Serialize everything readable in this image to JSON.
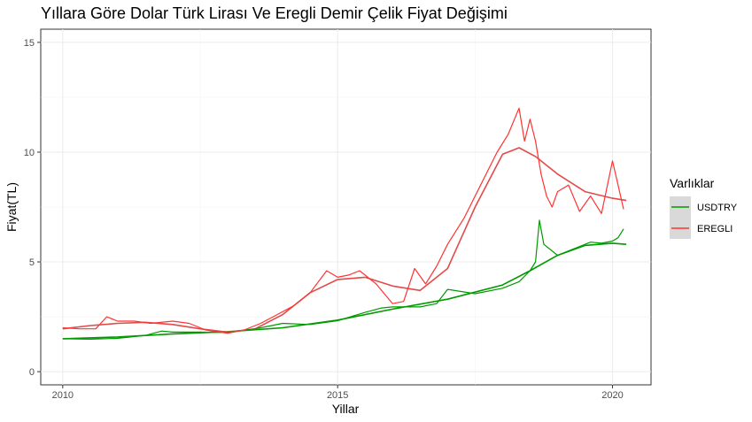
{
  "chart_data": {
    "type": "line",
    "title": "Yıllara Göre Dolar Türk Lirası Ve Eregli Demir Çelik Fiyat Değişimi",
    "xlabel": "Yillar",
    "ylabel": "Fiyat(TL)",
    "xlim": [
      2009.6,
      2020.7
    ],
    "ylim": [
      -0.6,
      15.6
    ],
    "x_ticks": [
      2010,
      2015,
      2020
    ],
    "x_tick_labels": [
      "2010",
      "2015",
      "2020"
    ],
    "y_ticks": [
      0,
      5,
      10,
      15
    ],
    "y_tick_labels": [
      "0",
      "5",
      "10",
      "15"
    ],
    "grid": true,
    "legend": {
      "title": "Varlıklar",
      "position": "right"
    },
    "series": [
      {
        "name": "USDTRY",
        "color": "#009900",
        "x": [
          2010.0,
          2010.5,
          2011.0,
          2011.5,
          2011.8,
          2012.0,
          2012.5,
          2013.0,
          2013.5,
          2013.8,
          2014.0,
          2014.5,
          2015.0,
          2015.5,
          2015.8,
          2016.0,
          2016.5,
          2016.8,
          2017.0,
          2017.5,
          2018.0,
          2018.3,
          2018.5,
          2018.6,
          2018.67,
          2018.75,
          2018.9,
          2019.0,
          2019.2,
          2019.4,
          2019.6,
          2019.8,
          2020.0,
          2020.1,
          2020.2
        ],
        "values": [
          1.5,
          1.48,
          1.52,
          1.65,
          1.85,
          1.8,
          1.8,
          1.78,
          1.95,
          2.1,
          2.2,
          2.15,
          2.32,
          2.7,
          2.9,
          2.95,
          2.95,
          3.1,
          3.75,
          3.55,
          3.8,
          4.1,
          4.6,
          5.0,
          6.9,
          5.8,
          5.5,
          5.3,
          5.5,
          5.7,
          5.9,
          5.85,
          5.95,
          6.1,
          6.5
        ]
      },
      {
        "name": "EREGLI",
        "color": "#ff3333",
        "x": [
          2010.0,
          2010.3,
          2010.6,
          2010.8,
          2011.0,
          2011.3,
          2011.6,
          2012.0,
          2012.3,
          2012.6,
          2013.0,
          2013.3,
          2013.6,
          2013.9,
          2014.2,
          2014.5,
          2014.8,
          2015.0,
          2015.2,
          2015.4,
          2015.7,
          2016.0,
          2016.2,
          2016.4,
          2016.6,
          2016.8,
          2017.0,
          2017.3,
          2017.6,
          2017.9,
          2018.1,
          2018.3,
          2018.4,
          2018.5,
          2018.6,
          2018.7,
          2018.8,
          2018.9,
          2019.0,
          2019.2,
          2019.4,
          2019.6,
          2019.8,
          2020.0,
          2020.1,
          2020.2
        ],
        "values": [
          2.0,
          1.95,
          1.95,
          2.5,
          2.3,
          2.3,
          2.2,
          2.3,
          2.2,
          1.9,
          1.75,
          1.9,
          2.2,
          2.6,
          3.0,
          3.6,
          4.6,
          4.3,
          4.4,
          4.6,
          4.0,
          3.1,
          3.2,
          4.7,
          4.0,
          4.8,
          5.8,
          7.0,
          8.5,
          10.0,
          10.8,
          12.0,
          10.5,
          11.5,
          10.5,
          9.0,
          8.0,
          7.5,
          8.2,
          8.5,
          7.3,
          8.0,
          7.2,
          9.6,
          8.5,
          7.4
        ]
      }
    ],
    "trend_lines": [
      {
        "name": "USDTRY trend",
        "color": "#009900",
        "x": [
          2010.0,
          2011.0,
          2012.0,
          2013.0,
          2014.0,
          2015.0,
          2016.0,
          2017.0,
          2018.0,
          2018.5,
          2019.0,
          2019.5,
          2020.0,
          2020.25
        ],
        "values": [
          1.5,
          1.58,
          1.72,
          1.82,
          2.0,
          2.35,
          2.85,
          3.3,
          3.95,
          4.6,
          5.3,
          5.75,
          5.85,
          5.8
        ]
      },
      {
        "name": "EREGLI trend",
        "color": "#e34a4a",
        "x": [
          2010.0,
          2010.5,
          2011.0,
          2011.5,
          2012.0,
          2012.5,
          2013.0,
          2013.5,
          2014.0,
          2014.5,
          2015.0,
          2015.5,
          2016.0,
          2016.5,
          2017.0,
          2017.5,
          2018.0,
          2018.3,
          2018.6,
          2019.0,
          2019.5,
          2020.0,
          2020.25
        ],
        "values": [
          1.95,
          2.1,
          2.2,
          2.25,
          2.15,
          1.95,
          1.8,
          1.95,
          2.6,
          3.6,
          4.2,
          4.3,
          3.9,
          3.7,
          4.7,
          7.5,
          9.9,
          10.2,
          9.8,
          9.0,
          8.2,
          7.9,
          7.8
        ]
      }
    ]
  }
}
